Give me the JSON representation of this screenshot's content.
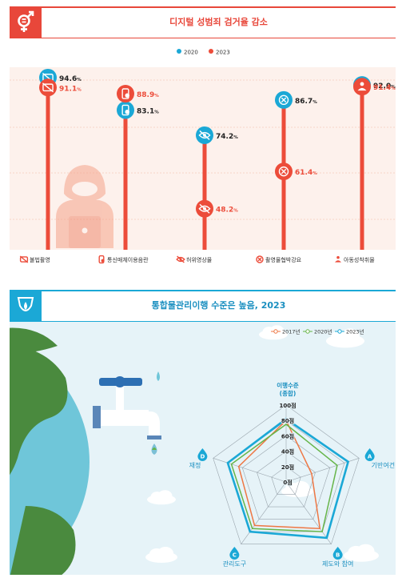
{
  "panel1": {
    "title": "디지털 성범죄 검거율 감소",
    "accent": "#e8473a",
    "legend": [
      {
        "label": "2020",
        "color": "#1ba8d6"
      },
      {
        "label": "2023",
        "color": "#ec4c3a"
      }
    ],
    "chart_data": {
      "type": "dot",
      "categories": [
        "불법촬영",
        "통신매체이용음란",
        "허위영상물",
        "촬영물협박강요",
        "아동성착취물"
      ],
      "icons": [
        "camera-off-icon",
        "phone-icon",
        "eye-off-icon",
        "target-icon",
        "child-icon"
      ],
      "series": [
        {
          "name": "2020",
          "values": [
            94.6,
            83.1,
            74.2,
            86.7,
            92.0
          ]
        },
        {
          "name": "2023",
          "values": [
            91.1,
            88.9,
            48.2,
            61.4,
            91.4
          ]
        }
      ],
      "unit": "%"
    }
  },
  "panel2": {
    "title": "통합물관리이행 수준은 높음, 2023",
    "accent": "#1ba8d6",
    "chart_data": {
      "type": "radar",
      "center_label": "이행수준\n(종합)",
      "axes": [
        {
          "letter": "A",
          "label": "기반여건"
        },
        {
          "letter": "B",
          "label": "제도와 참여"
        },
        {
          "letter": "C",
          "label": "관리도구"
        },
        {
          "letter": "D",
          "label": "재정"
        }
      ],
      "ticks": [
        "0점",
        "20점",
        "40점",
        "60점",
        "80점",
        "100점"
      ],
      "range": [
        0,
        100
      ],
      "series": [
        {
          "name": "2017년",
          "color": "#ee7744",
          "values": [
            80,
            35,
            75,
            70,
            65
          ]
        },
        {
          "name": "2020년",
          "color": "#66b549",
          "values": [
            75,
            70,
            80,
            75,
            75
          ]
        },
        {
          "name": "2023년",
          "color": "#1ba8d6",
          "values": [
            82,
            85,
            90,
            80,
            80
          ]
        }
      ]
    }
  }
}
